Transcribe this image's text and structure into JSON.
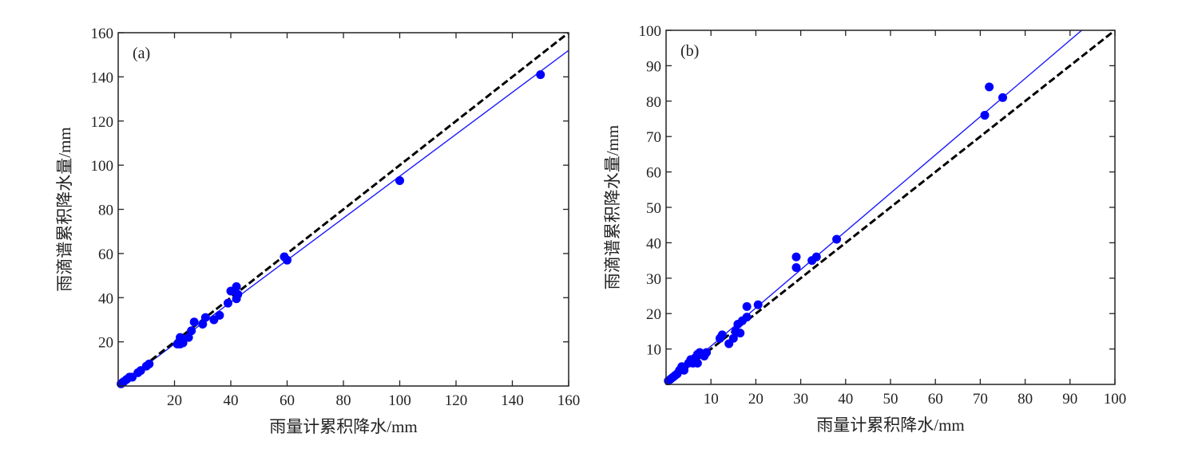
{
  "chart_data": [
    {
      "type": "scatter",
      "panel_label": "(a)",
      "xlabel": "雨量计累积降水/mm",
      "ylabel": "雨滴谱累积降水量/mm",
      "xlim": [
        0,
        160
      ],
      "ylim": [
        0,
        160
      ],
      "xticks": [
        20,
        40,
        60,
        80,
        100,
        120,
        140,
        160
      ],
      "yticks": [
        20,
        40,
        60,
        80,
        100,
        120,
        140,
        160
      ],
      "grid": false,
      "point_color": "#0000ff",
      "fit_color": "#1a1aff",
      "reference_color": "#000000",
      "points": [
        [
          1,
          1
        ],
        [
          1.5,
          1.5
        ],
        [
          2,
          2
        ],
        [
          3,
          3
        ],
        [
          4,
          4
        ],
        [
          5,
          4
        ],
        [
          7,
          6
        ],
        [
          8,
          7
        ],
        [
          10,
          9
        ],
        [
          11,
          10
        ],
        [
          21,
          19
        ],
        [
          22,
          19
        ],
        [
          22,
          22
        ],
        [
          23,
          19.5
        ],
        [
          25,
          22
        ],
        [
          26,
          25
        ],
        [
          27,
          29
        ],
        [
          30,
          28
        ],
        [
          31,
          31
        ],
        [
          34,
          30
        ],
        [
          36,
          32
        ],
        [
          39,
          37.5
        ],
        [
          40,
          43
        ],
        [
          42,
          45
        ],
        [
          42,
          39.5
        ],
        [
          42.5,
          41.5
        ],
        [
          59,
          58.5
        ],
        [
          60,
          57
        ],
        [
          100,
          93
        ],
        [
          150,
          141
        ]
      ],
      "fit_line": {
        "slope": 0.95,
        "intercept": 0
      },
      "reference_line": {
        "slope": 1,
        "intercept": 0
      }
    },
    {
      "type": "scatter",
      "panel_label": "(b)",
      "xlabel": "雨量计累积降水/mm",
      "ylabel": "雨滴谱累积降水量/mm",
      "xlim": [
        0,
        100
      ],
      "ylim": [
        0,
        100
      ],
      "xticks": [
        10,
        20,
        30,
        40,
        50,
        60,
        70,
        80,
        90,
        100
      ],
      "yticks": [
        10,
        20,
        30,
        40,
        50,
        60,
        70,
        80,
        90,
        100
      ],
      "grid": false,
      "point_color": "#0000ff",
      "fit_color": "#1a1aff",
      "reference_color": "#000000",
      "points": [
        [
          0.5,
          1
        ],
        [
          1,
          1.5
        ],
        [
          1.5,
          2
        ],
        [
          2,
          2.5
        ],
        [
          2.5,
          3
        ],
        [
          3,
          4
        ],
        [
          3.5,
          5
        ],
        [
          4,
          4
        ],
        [
          5,
          6
        ],
        [
          5.5,
          7
        ],
        [
          6,
          6
        ],
        [
          6.5,
          7.5
        ],
        [
          7,
          6
        ],
        [
          7,
          8.5
        ],
        [
          7.5,
          9
        ],
        [
          8.5,
          8
        ],
        [
          9,
          9
        ],
        [
          12,
          13
        ],
        [
          12.5,
          14
        ],
        [
          14,
          11.5
        ],
        [
          15,
          13
        ],
        [
          15.5,
          15
        ],
        [
          16,
          17
        ],
        [
          16.5,
          14.5
        ],
        [
          17,
          18
        ],
        [
          18,
          19
        ],
        [
          18,
          22
        ],
        [
          20.5,
          22.5
        ],
        [
          29,
          36
        ],
        [
          29,
          33
        ],
        [
          32.5,
          35
        ],
        [
          33.5,
          36
        ],
        [
          38,
          41
        ],
        [
          71,
          76
        ],
        [
          72,
          84
        ],
        [
          75,
          81
        ]
      ],
      "fit_line": {
        "slope": 1.08,
        "intercept": 0
      },
      "reference_line": {
        "slope": 1,
        "intercept": 0
      }
    }
  ]
}
